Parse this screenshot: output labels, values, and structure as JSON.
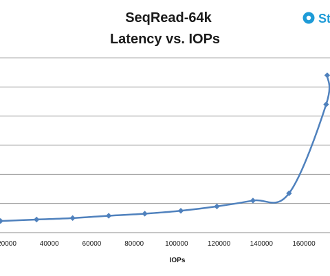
{
  "chart_data": {
    "type": "line",
    "title_line1": "SeqRead-64k",
    "title_line2": "Latency vs. IOPs",
    "xlabel": "IOPs",
    "ylabel": "",
    "x_ticks": [
      "20000",
      "40000",
      "60000",
      "80000",
      "100000",
      "120000",
      "140000",
      "160000"
    ],
    "xlim": [
      14000,
      172000
    ],
    "ylim": [
      0,
      60
    ],
    "grid": true,
    "series": [
      {
        "name": "",
        "color": "#4f81bd",
        "x": [
          17000,
          34000,
          51000,
          68000,
          85000,
          102000,
          119000,
          136000,
          153000,
          170500,
          171000
        ],
        "y": [
          4.0,
          4.5,
          5.0,
          5.8,
          6.5,
          7.5,
          9.0,
          11.0,
          13.5,
          44.0,
          54.0
        ]
      }
    ]
  },
  "logo": {
    "text": "St",
    "color": "#1e9bd7"
  }
}
